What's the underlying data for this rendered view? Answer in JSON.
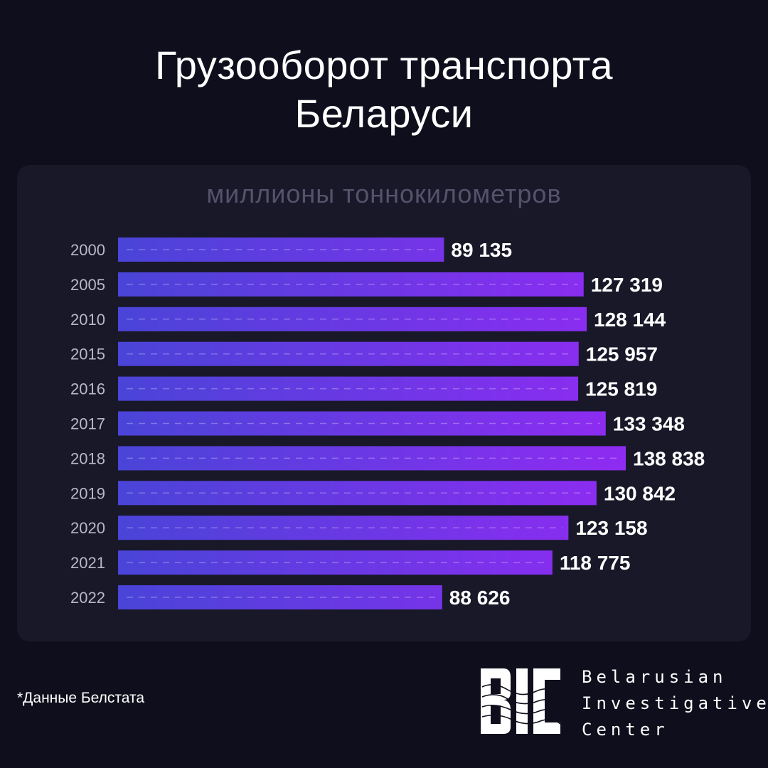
{
  "header": {
    "title_line1": "Грузооборот транспорта",
    "title_line2": "Беларуси"
  },
  "chart_data": {
    "type": "bar",
    "orientation": "horizontal",
    "unit_label": "миллионы тоннокилометров",
    "categories": [
      "2000",
      "2005",
      "2010",
      "2015",
      "2016",
      "2017",
      "2018",
      "2019",
      "2020",
      "2021",
      "2022"
    ],
    "values": [
      89135,
      127319,
      128144,
      125957,
      125819,
      133348,
      138838,
      130842,
      123158,
      118775,
      88626
    ],
    "value_labels": [
      "89 135",
      "127 319",
      "128 144",
      "125 957",
      "125 819",
      "133 348",
      "138 838",
      "130 842",
      "123 158",
      "118 775",
      "88 626"
    ],
    "grid": false,
    "legend": "none"
  },
  "colors": {
    "background": "#0f0e1c",
    "panel": "#191829",
    "bar_start": "#4a44d8",
    "bar_end": "#8f2bf2",
    "unit_text": "#54536a",
    "year_text": "#b9b8c6"
  },
  "footer": {
    "footnote": "*Данные Белстата",
    "logo_icon": "bic-logo-icon",
    "org_line1": "Belarusian",
    "org_line2": "Investigative",
    "org_line3": "Center"
  }
}
